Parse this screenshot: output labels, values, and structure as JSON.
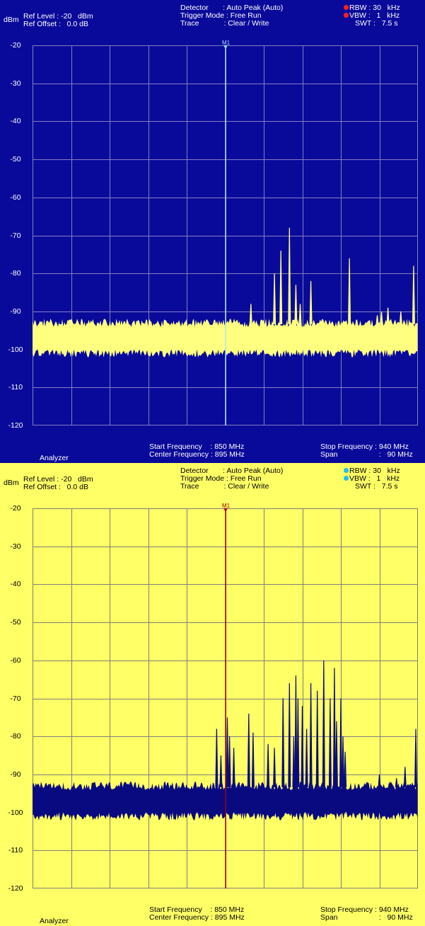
{
  "panels": [
    {
      "theme": "blue",
      "bg": "#0a0a9a",
      "text_color": "#ffffff",
      "trace_color": "#ffff80",
      "grid_color": "#7f7fbf",
      "marker_color": "#aaddff",
      "header": {
        "unit": "dBm",
        "ref_level": "Ref Level : -20   dBm",
        "ref_offset": "Ref Offset :   0.0 dB",
        "detector": "Detector       : Auto Peak (Auto)",
        "trigger_mode": "Trigger Mode : Free Run",
        "trace": "Trace            : Clear / Write",
        "rbw": "RBW : 30   kHz",
        "vbw": "VBW :   1   kHz",
        "swt": "SWT :   7.5 s",
        "indicator_color": "#ff2020"
      },
      "marker_label": "M1",
      "footer": {
        "analyzer": "Analyzer",
        "start_frequency": "Start Frequency    : 850 MHz",
        "center_frequency": "Center Frequency : 895 MHz",
        "stop_frequency": "Stop Frequency : 940 MHz",
        "span": "Span                    :   90 MHz"
      }
    },
    {
      "theme": "yellow",
      "bg": "#ffff66",
      "text_color": "#000000",
      "trace_color": "#0a0a80",
      "grid_color": "#7f7f7f",
      "marker_color": "#a00000",
      "header": {
        "unit": "dBm",
        "ref_level": "Ref Level : -20   dBm",
        "ref_offset": "Ref Offset :   0.0 dB",
        "detector": "Detector       : Auto Peak (Auto)",
        "trigger_mode": "Trigger Mode : Free Run",
        "trace": "Trace            : Clear / Write",
        "rbw": "RBW : 30   kHz",
        "vbw": "VBW :   1   kHz",
        "swt": "SWT :   7.5 s",
        "indicator_color": "#20c0f0"
      },
      "marker_label": "M1",
      "footer": {
        "analyzer": "Analyzer",
        "start_frequency": "Start Frequency    : 850 MHz",
        "center_frequency": "Center Frequency : 895 MHz",
        "stop_frequency": "Stop Frequency : 940 MHz",
        "span": "Span                    :   90 MHz"
      }
    }
  ],
  "chart_data": [
    {
      "type": "line",
      "xlabel": "",
      "ylabel": "dBm",
      "xlim": [
        850,
        940
      ],
      "ylim": [
        -120,
        -20
      ],
      "y_ticks": [
        "-20",
        "-30",
        "-40",
        "-50",
        "-60",
        "-70",
        "-80",
        "-90",
        "-100",
        "-110",
        "-120"
      ],
      "grid": true,
      "noise_floor": [
        -101,
        -93
      ],
      "marker": {
        "name": "M1",
        "x": 895
      },
      "series": [
        {
          "x": [
            856.5,
            883.0,
            901.0,
            906.5,
            908.0,
            910.0,
            911.5,
            912.5,
            915.0,
            924.0,
            930.5,
            931.5,
            933.0,
            936.0,
            939.0
          ],
          "y": [
            -95,
            -96,
            -88,
            -80,
            -74,
            -68,
            -83,
            -88,
            -82,
            -76,
            -91,
            -90,
            -89,
            -90,
            -78
          ]
        }
      ]
    },
    {
      "type": "line",
      "xlabel": "",
      "ylabel": "dBm",
      "xlim": [
        850,
        940
      ],
      "ylim": [
        -120,
        -20
      ],
      "y_ticks": [
        "-20",
        "-30",
        "-40",
        "-50",
        "-60",
        "-70",
        "-80",
        "-90",
        "-100",
        "-110",
        "-120"
      ],
      "grid": true,
      "noise_floor": [
        -101,
        -93
      ],
      "marker": {
        "name": "M1",
        "x": 895
      },
      "series": [
        {
          "x": [
            893.0,
            894.0,
            895.5,
            896.0,
            897.0,
            900.5,
            901.5,
            905.0,
            906.5,
            908.5,
            910.0,
            911.0,
            911.5,
            912.0,
            913.0,
            914.0,
            915.0,
            916.5,
            918.0,
            919.5,
            920.5,
            921.0,
            922.0,
            922.5,
            923.0,
            931.0,
            933.5,
            935.0,
            937.0,
            939.5
          ],
          "y": [
            -78,
            -85,
            -75,
            -80,
            -83,
            -74,
            -79,
            -82,
            -83,
            -70,
            -66,
            -80,
            -64,
            -70,
            -72,
            -78,
            -66,
            -68,
            -60,
            -70,
            -62,
            -76,
            -70,
            -80,
            -84,
            -90,
            -92,
            -91,
            -88,
            -78
          ]
        }
      ]
    }
  ]
}
